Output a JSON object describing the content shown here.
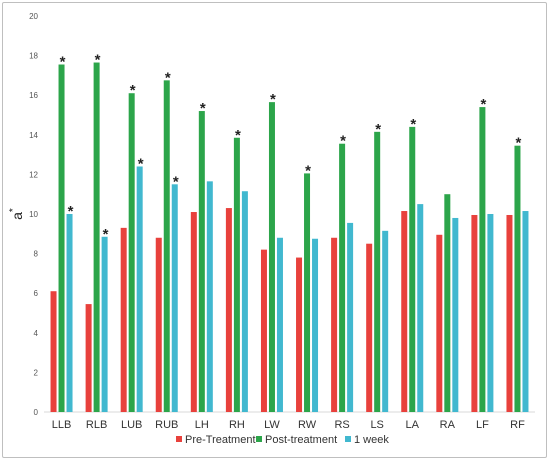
{
  "chart_data": {
    "type": "bar",
    "title": "",
    "xlabel": "",
    "ylabel": "a",
    "ylabel_superscript": "*",
    "ylim": [
      0,
      20
    ],
    "yticks": [
      0,
      2,
      4,
      6,
      8,
      10,
      12,
      14,
      16,
      18,
      20
    ],
    "grid": false,
    "legend_position": "bottom",
    "categories": [
      "LLB",
      "RLB",
      "LUB",
      "RUB",
      "LH",
      "RH",
      "LW",
      "RW",
      "RS",
      "LS",
      "LA",
      "RA",
      "LF",
      "RF"
    ],
    "series": [
      {
        "name": "Pre-Treatment",
        "color": "#e8413c",
        "values": [
          6.1,
          5.45,
          9.3,
          8.8,
          10.1,
          10.3,
          8.2,
          7.8,
          8.8,
          8.5,
          10.15,
          8.95,
          9.95,
          9.95
        ],
        "significant": [
          false,
          false,
          false,
          false,
          false,
          false,
          false,
          false,
          false,
          false,
          false,
          false,
          false,
          false
        ]
      },
      {
        "name": "Post-treatment",
        "color": "#2ca54a",
        "values": [
          17.55,
          17.65,
          16.1,
          16.75,
          15.2,
          13.85,
          15.65,
          12.05,
          13.55,
          14.15,
          14.4,
          11.0,
          15.4,
          13.45
        ],
        "significant": [
          true,
          true,
          true,
          true,
          true,
          true,
          true,
          true,
          true,
          true,
          true,
          false,
          true,
          true
        ]
      },
      {
        "name": "1 week",
        "color": "#41b8cf",
        "values": [
          10.0,
          8.85,
          12.4,
          11.5,
          11.65,
          11.15,
          8.8,
          8.75,
          9.55,
          9.15,
          10.5,
          9.8,
          10.0,
          10.15
        ],
        "significant": [
          true,
          true,
          true,
          true,
          false,
          false,
          false,
          false,
          false,
          false,
          false,
          false,
          false,
          false
        ]
      }
    ],
    "annotation_marker": "*"
  }
}
